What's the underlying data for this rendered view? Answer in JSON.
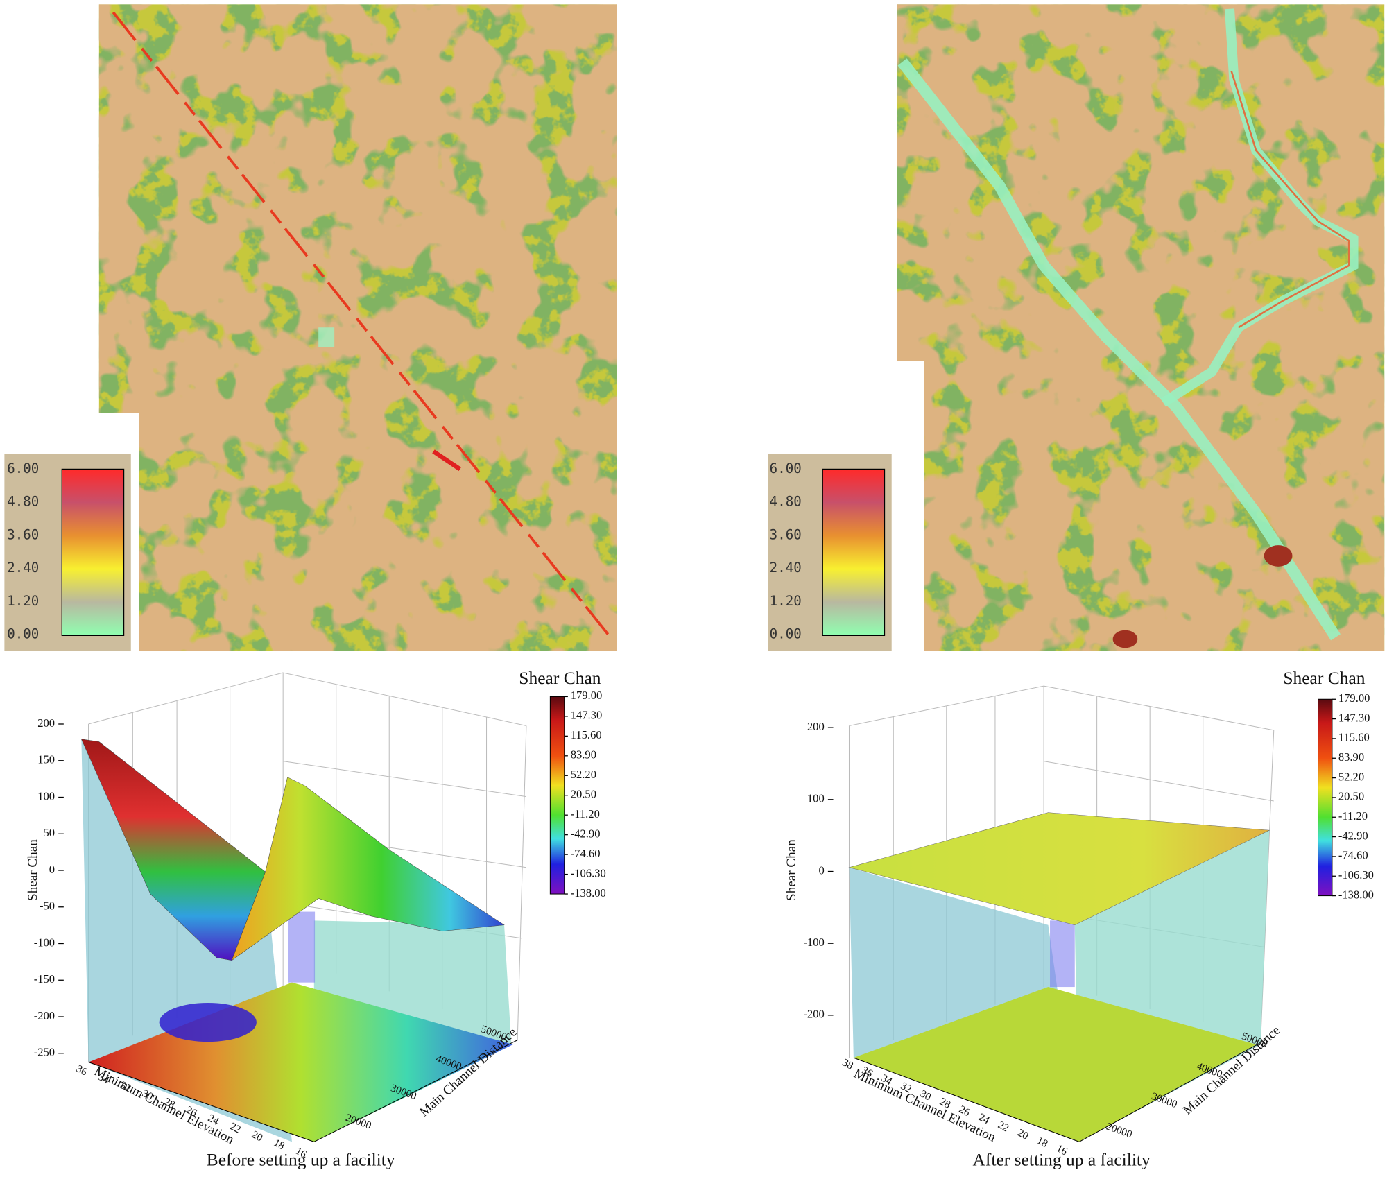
{
  "maps": [
    {
      "legend_ticks": [
        "6.00",
        "4.80",
        "3.60",
        "2.40",
        "1.20",
        "0.00"
      ]
    },
    {
      "legend_ticks": [
        "6.00",
        "4.80",
        "3.60",
        "2.40",
        "1.20",
        "0.00"
      ]
    }
  ],
  "plots": [
    {
      "caption": "Before setting up a facility",
      "colorbar_title": "Shear Chan",
      "colorbar_ticks": [
        "179.00",
        "147.30",
        "115.60",
        "83.90",
        "52.20",
        "20.50",
        "-11.20",
        "-42.90",
        "-74.60",
        "-106.30",
        "-138.00"
      ],
      "z_label": "Shear Chan",
      "z_ticks": [
        "200",
        "150",
        "100",
        "50",
        "0",
        "-50",
        "-100",
        "-150",
        "-200",
        "-250"
      ],
      "x_label": "Minimum Channel Elevation",
      "x_ticks": [
        "36",
        "34",
        "32",
        "30",
        "28",
        "26",
        "24",
        "22",
        "20",
        "18",
        "16"
      ],
      "y_label": "Main Channel Distance",
      "y_ticks": [
        "20000",
        "30000",
        "40000",
        "50000"
      ]
    },
    {
      "caption": "After setting up a facility",
      "colorbar_title": "Shear Chan",
      "colorbar_ticks": [
        "179.00",
        "147.30",
        "115.60",
        "83.90",
        "52.20",
        "20.50",
        "-11.20",
        "-42.90",
        "-74.60",
        "-106.30",
        "-138.00"
      ],
      "z_label": "Shear Chan",
      "z_ticks": [
        "200",
        "100",
        "0",
        "-100",
        "-200"
      ],
      "x_label": "Minimum Channel Elevation",
      "x_ticks": [
        "38",
        "36",
        "34",
        "32",
        "30",
        "28",
        "26",
        "24",
        "22",
        "20",
        "18",
        "16"
      ],
      "y_label": "Main Channel Distance",
      "y_ticks": [
        "20000",
        "30000",
        "40000",
        "50000"
      ]
    }
  ]
}
